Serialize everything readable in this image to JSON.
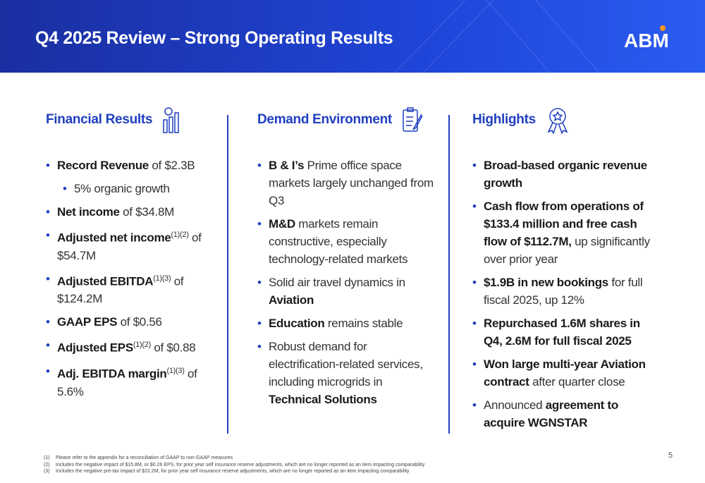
{
  "header": {
    "title": "Q4 2025 Review – Strong Operating Results",
    "logo": "ABM"
  },
  "columns": [
    {
      "heading": "Financial Results",
      "items": [
        [
          "Record Revenue",
          "of $2.3B"
        ],
        [
          "5% organic growth"
        ],
        [
          "Net income",
          "of $34.8M"
        ],
        [
          "Adjusted net income",
          "(1)(2)",
          "of $54.7M"
        ],
        [
          "Adjusted EBITDA",
          "(1)(3)",
          "of $124.2M"
        ],
        [
          "GAAP EPS",
          "of $0.56"
        ],
        [
          "Adjusted EPS",
          "(1)(2)",
          "of $0.88"
        ],
        [
          "Adj. EBITDA margin",
          "(1)(3)",
          "of 5.6%"
        ]
      ]
    },
    {
      "heading": "Demand Environment",
      "items": [
        [
          "B & I’s",
          "Prime office space markets largely unchanged from Q3"
        ],
        [
          "M&D",
          "markets remain constructive, especially technology-related markets"
        ],
        [
          "Solid air travel dynamics in",
          "Aviation"
        ],
        [
          "Education",
          "remains stable"
        ],
        [
          "Robust demand for electrification-related services, including microgrids in",
          "Technical Solutions"
        ]
      ]
    },
    {
      "heading": "Highlights",
      "items": [
        [
          "Broad-based organic revenue growth"
        ],
        [
          "Cash flow from operations of $133.4 million and free cash flow of $112.7M,",
          "up significantly over prior year"
        ],
        [
          "$1.9B in new bookings",
          "for full fiscal 2025, up 12%"
        ],
        [
          "Repurchased 1.6M shares in Q4, 2.6M for full fiscal 2025"
        ],
        [
          "Won large multi-year Aviation contract",
          "after quarter close"
        ],
        [
          "Announced",
          "agreement to acquire WGNSTAR"
        ]
      ]
    }
  ],
  "footnotes": [
    [
      "(1)",
      "Please refer to the appendix for a reconciliation of GAAP to non-GAAP measures"
    ],
    [
      "(2)",
      "Includes the negative impact of $15.8M, or $0.26 EPS, for prior year self insurance reserve adjustments, which are no longer reported as an item impacting comparability"
    ],
    [
      "(3)",
      "Includes the negative pre-tax impact of $22.2M, for prior year self insurance reserve adjustments, which are no longer reported as an item impacting comparability"
    ]
  ],
  "page_number": "5"
}
